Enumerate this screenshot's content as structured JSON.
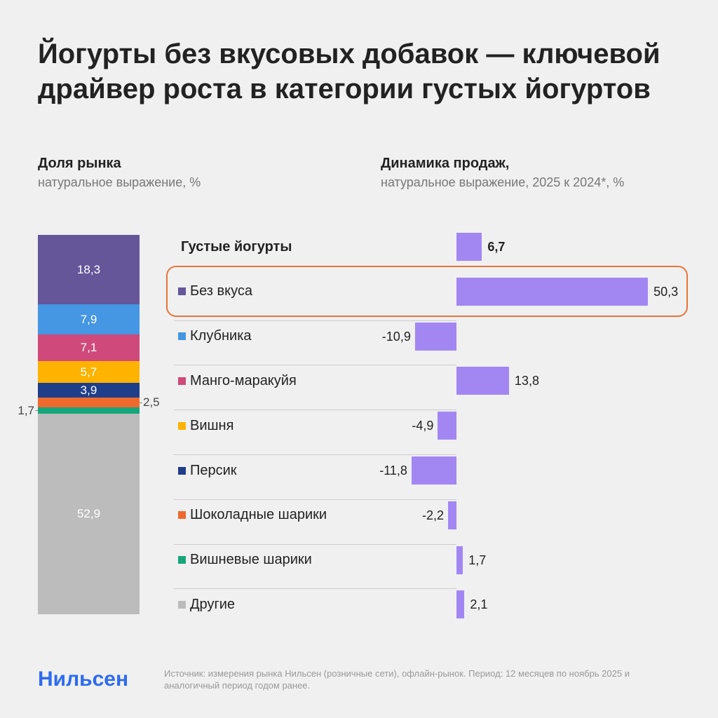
{
  "title": "Йогурты без вкусовых добавок — ключевой драйвер роста в категории густых йогуртов",
  "left_heading": "Доля рынка",
  "left_sub": "натуральное выражение, %",
  "right_heading": "Динамика продаж,",
  "right_sub": "натуральное выражение, 2025 к 2024*, %",
  "logo": "Нильсен",
  "source": "Источник: измерения рынка Нильсен (розничные сети), офлайн-рынок. Период: 12 месяцев по ноябрь 2025 и аналогичный период годом ранее.",
  "highlight_color": "#e8743b",
  "bar_color": "#a287f2",
  "chart_data": [
    {
      "type": "bar",
      "stacked": true,
      "title": "Доля рынка",
      "subtitle": "натуральное выражение, %",
      "categories": [
        "Без вкуса",
        "Клубника",
        "Манго-маракуйя",
        "Вишня",
        "Персик",
        "Шоколадные шарики",
        "Вишневые шарики",
        "Другие"
      ],
      "values": [
        18.3,
        7.9,
        7.1,
        5.7,
        3.9,
        2.5,
        1.7,
        52.9
      ],
      "labels": [
        "18,3",
        "7,9",
        "7,1",
        "5,7",
        "3,9",
        "2,5",
        "1,7",
        "52,9"
      ],
      "colors": [
        "#65569a",
        "#4596e3",
        "#cf4a7a",
        "#fdb300",
        "#1f3e8a",
        "#ee6a2c",
        "#17a67a",
        "#bcbcbc"
      ]
    },
    {
      "type": "bar",
      "orientation": "horizontal",
      "title": "Динамика продаж,",
      "subtitle": "натуральное выражение, 2025 к 2024*, %",
      "categories": [
        "Густые йогурты",
        "Без вкуса",
        "Клубника",
        "Манго-маракуйя",
        "Вишня",
        "Персик",
        "Шоколадные шарики",
        "Вишневые шарики",
        "Другие"
      ],
      "values": [
        6.7,
        50.3,
        -10.9,
        13.8,
        -4.9,
        -11.8,
        -2.2,
        1.7,
        2.1
      ],
      "labels": [
        "6,7",
        "50,3",
        "-10,9",
        "13,8",
        "-4,9",
        "-11,8",
        "-2,2",
        "1,7",
        "2,1"
      ],
      "highlighted": "Без вкуса"
    }
  ]
}
